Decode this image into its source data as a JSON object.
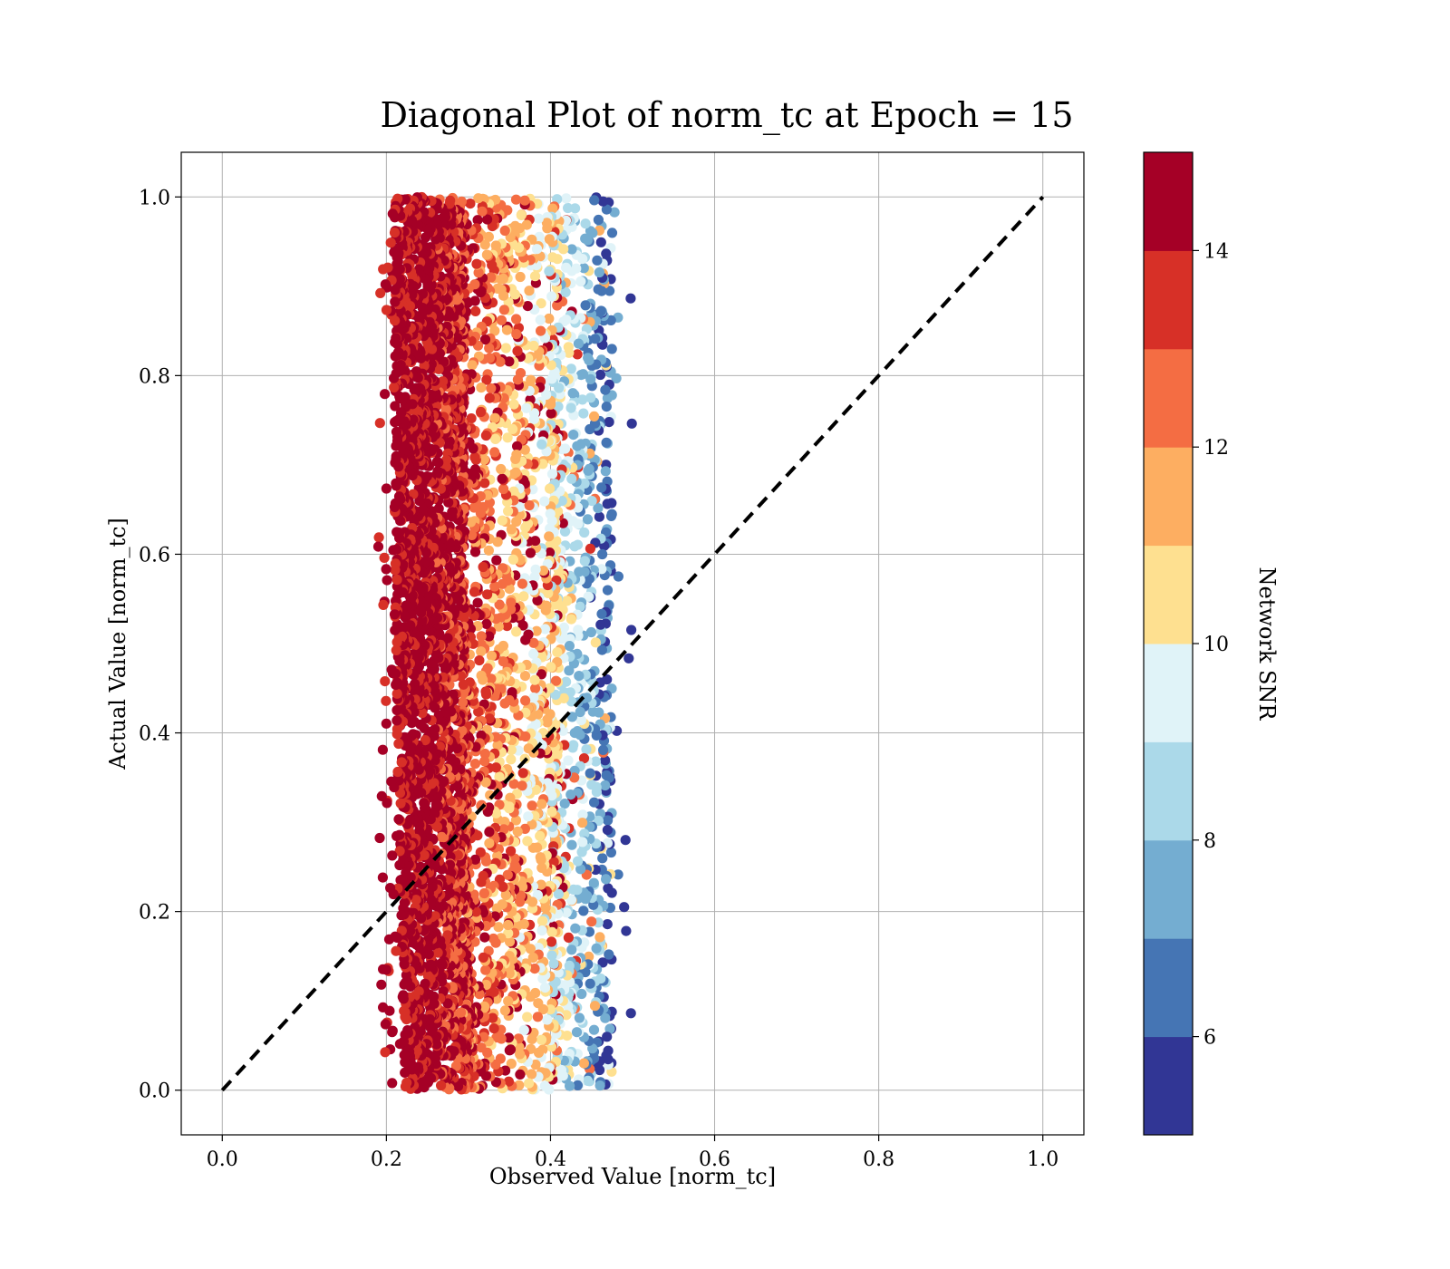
{
  "chart_data": {
    "type": "scatter",
    "title": "Diagonal Plot of norm_tc at Epoch = 15",
    "xlabel": "Observed Value [norm_tc]",
    "ylabel": "Actual Value [norm_tc]",
    "xlim": [
      -0.05,
      1.05
    ],
    "ylim": [
      -0.05,
      1.05
    ],
    "xticks": [
      "0.0",
      "0.2",
      "0.4",
      "0.6",
      "0.8",
      "1.0"
    ],
    "yticks": [
      "0.0",
      "0.2",
      "0.4",
      "0.6",
      "0.8",
      "1.0"
    ],
    "grid": true,
    "reference_line": {
      "style": "dashed",
      "color": "#000000",
      "x": [
        0,
        1
      ],
      "y": [
        0,
        1
      ]
    },
    "scatter_summary": {
      "x_range": [
        0.19,
        0.5
      ],
      "y_range": [
        0.0,
        1.0
      ],
      "trend": "high-SNR points concentrated near x = 0.21–0.30; lower-SNR points toward x = 0.40–0.48"
    },
    "colorbar": {
      "label": "Network SNR",
      "range": [
        5,
        15
      ],
      "ticks": [
        "6",
        "8",
        "10",
        "12",
        "14"
      ],
      "colors": [
        "#313695",
        "#4575b4",
        "#74add1",
        "#abd9e9",
        "#e0f3f8",
        "#fee090",
        "#fdae61",
        "#f46d43",
        "#d73027",
        "#a50026"
      ]
    }
  }
}
